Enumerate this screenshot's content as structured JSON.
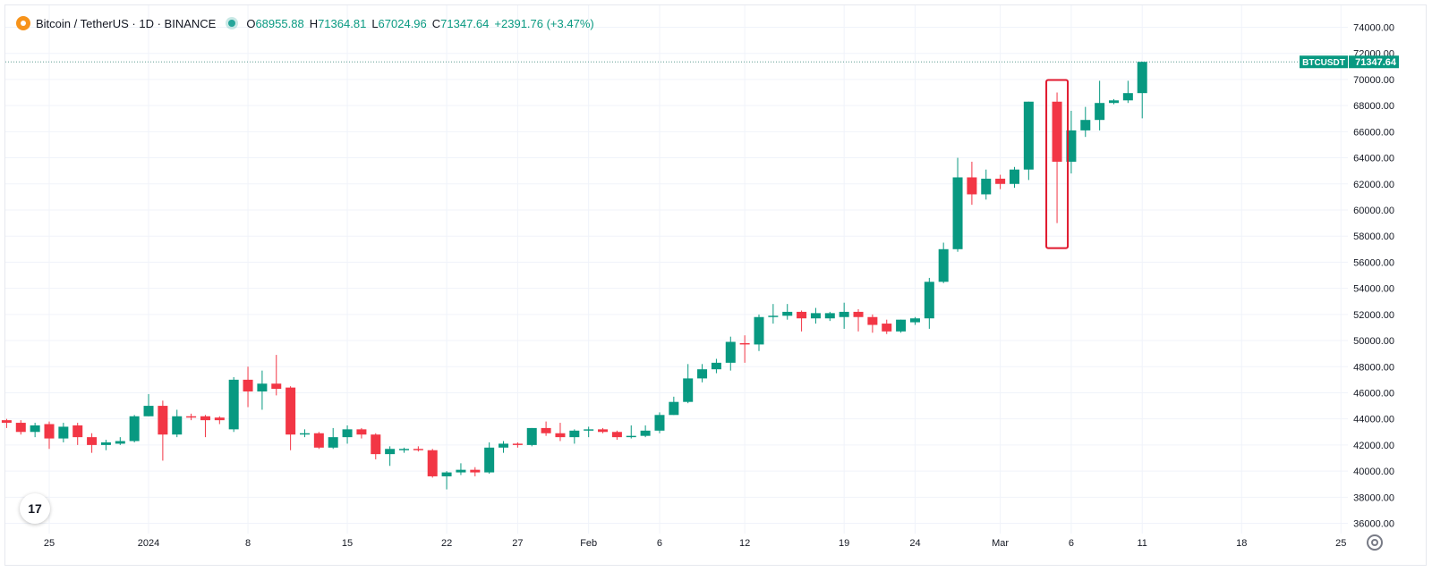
{
  "header": {
    "symbol_title": "Bitcoin / TetherUS · 1D · BINANCE",
    "open_key": "O",
    "open": "68955.88",
    "high_key": "H",
    "high": "71364.81",
    "low_key": "L",
    "low": "67024.96",
    "close_key": "C",
    "close": "71347.64",
    "change": "+2391.76 (+3.47%)"
  },
  "price_tag": {
    "symbol": "BTCUSDT",
    "price": "71347.64"
  },
  "colors": {
    "up": "#089981",
    "down": "#f23645",
    "grid": "#f0f3fa",
    "axis_text": "#131722",
    "highlight": "#e0182d"
  },
  "icons": {
    "tradingview_logo": "17",
    "settings": "gear-icon"
  },
  "chart_data": {
    "type": "candlestick",
    "title": "Bitcoin / TetherUS · 1D · BINANCE",
    "xlabel": "",
    "ylabel": "",
    "ylim": [
      35000,
      75500
    ],
    "y_ticks": [
      "36000.00",
      "38000.00",
      "40000.00",
      "42000.00",
      "44000.00",
      "46000.00",
      "48000.00",
      "50000.00",
      "52000.00",
      "54000.00",
      "56000.00",
      "58000.00",
      "60000.00",
      "62000.00",
      "64000.00",
      "66000.00",
      "68000.00",
      "70000.00",
      "72000.00",
      "74000.00"
    ],
    "x_ticks": [
      {
        "label": "25",
        "date": "2023-12-25"
      },
      {
        "label": "2024",
        "date": "2024-01-01"
      },
      {
        "label": "8",
        "date": "2024-01-08"
      },
      {
        "label": "15",
        "date": "2024-01-15"
      },
      {
        "label": "22",
        "date": "2024-01-22"
      },
      {
        "label": "27",
        "date": "2024-01-27"
      },
      {
        "label": "Feb",
        "date": "2024-02-01"
      },
      {
        "label": "6",
        "date": "2024-02-06"
      },
      {
        "label": "12",
        "date": "2024-02-12"
      },
      {
        "label": "19",
        "date": "2024-02-19"
      },
      {
        "label": "24",
        "date": "2024-02-24"
      },
      {
        "label": "Mar",
        "date": "2024-03-01"
      },
      {
        "label": "6",
        "date": "2024-03-06"
      },
      {
        "label": "11",
        "date": "2024-03-11"
      },
      {
        "label": "18",
        "date": "2024-03-18"
      },
      {
        "label": "25",
        "date": "2024-03-25"
      }
    ],
    "grid": true,
    "last_price_line": 71347.64,
    "highlighted_candle": "2024-03-05",
    "series": [
      {
        "candles": [
          {
            "d": "2023-12-21",
            "o": 43700,
            "h": 44000,
            "l": 43400,
            "c": 43900
          },
          {
            "d": "2023-12-22",
            "o": 43900,
            "h": 44000,
            "l": 43300,
            "c": 43700
          },
          {
            "d": "2023-12-23",
            "o": 43700,
            "h": 43900,
            "l": 42800,
            "c": 43000
          },
          {
            "d": "2023-12-24",
            "o": 43000,
            "h": 43700,
            "l": 42600,
            "c": 43500
          },
          {
            "d": "2023-12-25",
            "o": 43600,
            "h": 43800,
            "l": 41700,
            "c": 42500
          },
          {
            "d": "2023-12-26",
            "o": 42500,
            "h": 43700,
            "l": 42200,
            "c": 43400
          },
          {
            "d": "2023-12-27",
            "o": 43500,
            "h": 43700,
            "l": 42000,
            "c": 42600
          },
          {
            "d": "2023-12-28",
            "o": 42600,
            "h": 42900,
            "l": 41400,
            "c": 42000
          },
          {
            "d": "2023-12-29",
            "o": 42000,
            "h": 42400,
            "l": 41600,
            "c": 42200
          },
          {
            "d": "2023-12-30",
            "o": 42100,
            "h": 42600,
            "l": 42000,
            "c": 42300
          },
          {
            "d": "2023-12-31",
            "o": 42300,
            "h": 44300,
            "l": 42200,
            "c": 44200
          },
          {
            "d": "2024-01-01",
            "o": 44200,
            "h": 45900,
            "l": 44200,
            "c": 45000
          },
          {
            "d": "2024-01-02",
            "o": 45000,
            "h": 45400,
            "l": 40800,
            "c": 42800
          },
          {
            "d": "2024-01-03",
            "o": 42800,
            "h": 44700,
            "l": 42600,
            "c": 44200
          },
          {
            "d": "2024-01-04",
            "o": 44200,
            "h": 44400,
            "l": 43900,
            "c": 44100
          },
          {
            "d": "2024-01-05",
            "o": 44200,
            "h": 44300,
            "l": 42600,
            "c": 43900
          },
          {
            "d": "2024-01-06",
            "o": 44100,
            "h": 44200,
            "l": 43600,
            "c": 43900
          },
          {
            "d": "2024-01-07",
            "o": 43200,
            "h": 47200,
            "l": 43000,
            "c": 47000
          },
          {
            "d": "2024-01-08",
            "o": 47000,
            "h": 48000,
            "l": 44900,
            "c": 46100
          },
          {
            "d": "2024-01-09",
            "o": 46100,
            "h": 47700,
            "l": 44700,
            "c": 46700
          },
          {
            "d": "2024-01-10",
            "o": 46700,
            "h": 48900,
            "l": 45800,
            "c": 46300
          },
          {
            "d": "2024-01-11",
            "o": 46400,
            "h": 46500,
            "l": 41600,
            "c": 42800
          },
          {
            "d": "2024-01-12",
            "o": 42800,
            "h": 43200,
            "l": 42600,
            "c": 42900
          },
          {
            "d": "2024-01-13",
            "o": 42900,
            "h": 43000,
            "l": 41700,
            "c": 41800
          },
          {
            "d": "2024-01-14",
            "o": 41800,
            "h": 43300,
            "l": 41700,
            "c": 42600
          },
          {
            "d": "2024-01-15",
            "o": 42600,
            "h": 43500,
            "l": 42100,
            "c": 43200
          },
          {
            "d": "2024-01-16",
            "o": 43200,
            "h": 43300,
            "l": 42500,
            "c": 42800
          },
          {
            "d": "2024-01-17",
            "o": 42800,
            "h": 42900,
            "l": 40900,
            "c": 41300
          },
          {
            "d": "2024-01-18",
            "o": 41300,
            "h": 41900,
            "l": 40400,
            "c": 41700
          },
          {
            "d": "2024-01-19",
            "o": 41600,
            "h": 41800,
            "l": 41400,
            "c": 41700
          },
          {
            "d": "2024-01-20",
            "o": 41700,
            "h": 41900,
            "l": 41500,
            "c": 41600
          },
          {
            "d": "2024-01-21",
            "o": 41600,
            "h": 41700,
            "l": 39500,
            "c": 39600
          },
          {
            "d": "2024-01-22",
            "o": 39600,
            "h": 40000,
            "l": 38600,
            "c": 39900
          },
          {
            "d": "2024-01-23",
            "o": 39900,
            "h": 40600,
            "l": 39700,
            "c": 40100
          },
          {
            "d": "2024-01-24",
            "o": 40100,
            "h": 40300,
            "l": 39600,
            "c": 39900
          },
          {
            "d": "2024-01-25",
            "o": 39900,
            "h": 42200,
            "l": 39800,
            "c": 41800
          },
          {
            "d": "2024-01-26",
            "o": 41800,
            "h": 42300,
            "l": 41400,
            "c": 42100
          },
          {
            "d": "2024-01-27",
            "o": 42100,
            "h": 42200,
            "l": 41800,
            "c": 42000
          },
          {
            "d": "2024-01-28",
            "o": 42000,
            "h": 43300,
            "l": 41900,
            "c": 43300
          },
          {
            "d": "2024-01-29",
            "o": 43300,
            "h": 43800,
            "l": 42700,
            "c": 42900
          },
          {
            "d": "2024-01-30",
            "o": 42900,
            "h": 43700,
            "l": 42300,
            "c": 42600
          },
          {
            "d": "2024-01-31",
            "o": 42600,
            "h": 43200,
            "l": 42100,
            "c": 43100
          },
          {
            "d": "2024-02-01",
            "o": 43100,
            "h": 43400,
            "l": 42600,
            "c": 43200
          },
          {
            "d": "2024-02-02",
            "o": 43200,
            "h": 43300,
            "l": 42900,
            "c": 43000
          },
          {
            "d": "2024-02-03",
            "o": 43000,
            "h": 43100,
            "l": 42400,
            "c": 42600
          },
          {
            "d": "2024-02-04",
            "o": 42600,
            "h": 43500,
            "l": 42500,
            "c": 42700
          },
          {
            "d": "2024-02-05",
            "o": 42700,
            "h": 43500,
            "l": 42600,
            "c": 43100
          },
          {
            "d": "2024-02-06",
            "o": 43100,
            "h": 44500,
            "l": 42900,
            "c": 44300
          },
          {
            "d": "2024-02-07",
            "o": 44300,
            "h": 45700,
            "l": 44300,
            "c": 45300
          },
          {
            "d": "2024-02-08",
            "o": 45300,
            "h": 48200,
            "l": 45200,
            "c": 47100
          },
          {
            "d": "2024-02-09",
            "o": 47100,
            "h": 48200,
            "l": 46800,
            "c": 47800
          },
          {
            "d": "2024-02-10",
            "o": 47800,
            "h": 48600,
            "l": 47500,
            "c": 48300
          },
          {
            "d": "2024-02-11",
            "o": 48300,
            "h": 50300,
            "l": 47700,
            "c": 49900
          },
          {
            "d": "2024-02-12",
            "o": 49800,
            "h": 50400,
            "l": 48300,
            "c": 49700
          },
          {
            "d": "2024-02-13",
            "o": 49700,
            "h": 52000,
            "l": 49200,
            "c": 51800
          },
          {
            "d": "2024-02-14",
            "o": 51800,
            "h": 52800,
            "l": 51300,
            "c": 51900
          },
          {
            "d": "2024-02-15",
            "o": 51900,
            "h": 52800,
            "l": 51600,
            "c": 52200
          },
          {
            "d": "2024-02-16",
            "o": 52200,
            "h": 52300,
            "l": 50700,
            "c": 51700
          },
          {
            "d": "2024-02-17",
            "o": 51700,
            "h": 52500,
            "l": 51300,
            "c": 52100
          },
          {
            "d": "2024-02-18",
            "o": 51700,
            "h": 52200,
            "l": 51500,
            "c": 52100
          },
          {
            "d": "2024-02-19",
            "o": 51800,
            "h": 52900,
            "l": 50900,
            "c": 52200
          },
          {
            "d": "2024-02-20",
            "o": 52200,
            "h": 52400,
            "l": 50700,
            "c": 51800
          },
          {
            "d": "2024-02-21",
            "o": 51800,
            "h": 52000,
            "l": 50600,
            "c": 51200
          },
          {
            "d": "2024-02-22",
            "o": 51300,
            "h": 51600,
            "l": 50500,
            "c": 50700
          },
          {
            "d": "2024-02-23",
            "o": 50700,
            "h": 51600,
            "l": 50600,
            "c": 51600
          },
          {
            "d": "2024-02-24",
            "o": 51400,
            "h": 51800,
            "l": 51200,
            "c": 51700
          },
          {
            "d": "2024-02-25",
            "o": 51700,
            "h": 54800,
            "l": 50900,
            "c": 54500
          },
          {
            "d": "2024-02-26",
            "o": 54500,
            "h": 57500,
            "l": 54400,
            "c": 57000
          },
          {
            "d": "2024-02-27",
            "o": 57000,
            "h": 64000,
            "l": 56800,
            "c": 62500
          },
          {
            "d": "2024-02-28",
            "o": 62500,
            "h": 63700,
            "l": 60400,
            "c": 61200
          },
          {
            "d": "2024-02-29",
            "o": 61200,
            "h": 63100,
            "l": 60800,
            "c": 62400
          },
          {
            "d": "2024-03-01",
            "o": 62400,
            "h": 62700,
            "l": 61600,
            "c": 62000
          },
          {
            "d": "2024-03-02",
            "o": 62000,
            "h": 63300,
            "l": 61700,
            "c": 63100
          },
          {
            "d": "2024-03-03",
            "o": 63100,
            "h": 68300,
            "l": 62300,
            "c": 68300
          },
          {
            "d": "2024-03-05",
            "o": 68300,
            "h": 69000,
            "l": 59000,
            "c": 63700
          },
          {
            "d": "2024-03-06",
            "o": 63700,
            "h": 67600,
            "l": 62800,
            "c": 66100
          },
          {
            "d": "2024-03-07",
            "o": 66100,
            "h": 67900,
            "l": 65600,
            "c": 66900
          },
          {
            "d": "2024-03-08",
            "o": 66900,
            "h": 69900,
            "l": 66100,
            "c": 68200
          },
          {
            "d": "2024-03-09",
            "o": 68200,
            "h": 68500,
            "l": 68100,
            "c": 68400
          },
          {
            "d": "2024-03-10",
            "o": 68400,
            "h": 69900,
            "l": 68200,
            "c": 68955.88
          },
          {
            "d": "2024-03-11",
            "o": 68955.88,
            "h": 71364.81,
            "l": 67024.96,
            "c": 71347.64
          }
        ]
      }
    ]
  }
}
